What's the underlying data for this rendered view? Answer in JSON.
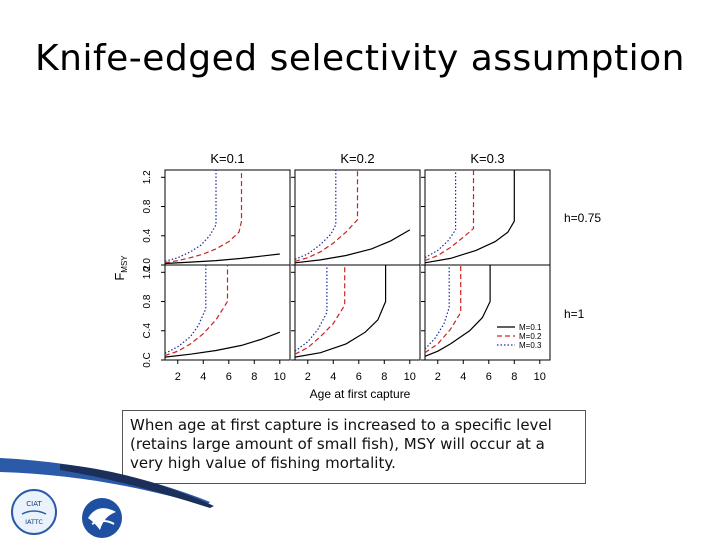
{
  "slide": {
    "title": "Knife-edged selectivity assumption",
    "caption": "When age at first capture is increased to a specific level (retains large amount of small fish), MSY will occur at a very high value of fishing mortality."
  },
  "logos": {
    "left": "CIAT IATTC",
    "right": "NOAA"
  },
  "chart_data": {
    "type": "line",
    "layout": "2x3 panel grid",
    "column_titles": [
      "K=0.1",
      "K=0.2",
      "K=0.3"
    ],
    "row_labels": [
      "h=0.75",
      "h=1"
    ],
    "ylabel": "F_MSY",
    "ylabel_main": "F",
    "ylabel_sub": "MSY",
    "xlabel": "Age at first capture",
    "x_ticks": [
      2,
      4,
      6,
      8,
      10
    ],
    "y_ticks": [
      0.0,
      0.4,
      0.8,
      1.2
    ],
    "y_tick_labels_top": [
      "0.0",
      "0.4",
      "0.8",
      "1.2"
    ],
    "y_tick_labels_bottom": [
      "0.C",
      "C.4",
      "0.8",
      "1.2"
    ],
    "xlim": [
      1,
      10.8
    ],
    "ylim": [
      0,
      1.3
    ],
    "legend": {
      "placement": "bottom-right panel, lower right",
      "entries": [
        "M=0.1",
        "M=0.2",
        "M=0.3"
      ]
    },
    "series_styles": {
      "M=0.1": {
        "color": "#000000",
        "dash": "solid"
      },
      "M=0.2": {
        "color": "#cc2222",
        "dash": "dashed"
      },
      "M=0.3": {
        "color": "#1a2a9a",
        "dash": "dotted"
      }
    },
    "panels": [
      {
        "row": 0,
        "col": 0,
        "series": [
          {
            "name": "M=0.1",
            "x": [
              1,
              3,
              5,
              7,
              8.5,
              10
            ],
            "y": [
              0.02,
              0.04,
              0.06,
              0.09,
              0.12,
              0.15
            ]
          },
          {
            "name": "M=0.2",
            "x": [
              1,
              2,
              3,
              4,
              5,
              6,
              6.8,
              7.0,
              7.0
            ],
            "y": [
              0.03,
              0.06,
              0.1,
              0.15,
              0.22,
              0.32,
              0.45,
              0.6,
              1.3
            ]
          },
          {
            "name": "M=0.3",
            "x": [
              1,
              2,
              3,
              3.8,
              4.5,
              5.0,
              5.0
            ],
            "y": [
              0.05,
              0.1,
              0.18,
              0.27,
              0.4,
              0.55,
              1.3
            ]
          }
        ]
      },
      {
        "row": 0,
        "col": 1,
        "series": [
          {
            "name": "M=0.1",
            "x": [
              1,
              3,
              5,
              7,
              8.5,
              10
            ],
            "y": [
              0.03,
              0.07,
              0.13,
              0.22,
              0.33,
              0.48
            ]
          },
          {
            "name": "M=0.2",
            "x": [
              1,
              2,
              3,
              4,
              5,
              5.9,
              5.9
            ],
            "y": [
              0.05,
              0.1,
              0.18,
              0.3,
              0.45,
              0.62,
              1.3
            ]
          },
          {
            "name": "M=0.3",
            "x": [
              1,
              2,
              3,
              3.8,
              4.2,
              4.2
            ],
            "y": [
              0.08,
              0.15,
              0.28,
              0.42,
              0.55,
              1.3
            ]
          }
        ]
      },
      {
        "row": 0,
        "col": 2,
        "series": [
          {
            "name": "M=0.1",
            "x": [
              1,
              3,
              5,
              6.5,
              7.5,
              8.0,
              8.0
            ],
            "y": [
              0.03,
              0.09,
              0.2,
              0.32,
              0.45,
              0.6,
              1.3
            ]
          },
          {
            "name": "M=0.2",
            "x": [
              1,
              2,
              3,
              4,
              4.8,
              4.8
            ],
            "y": [
              0.06,
              0.13,
              0.24,
              0.38,
              0.5,
              1.3
            ]
          },
          {
            "name": "M=0.3",
            "x": [
              1,
              2,
              2.8,
              3.4,
              3.4
            ],
            "y": [
              0.1,
              0.2,
              0.33,
              0.48,
              1.3
            ]
          }
        ]
      },
      {
        "row": 1,
        "col": 0,
        "series": [
          {
            "name": "M=0.1",
            "x": [
              1,
              3,
              5,
              7,
              8.5,
              10
            ],
            "y": [
              0.04,
              0.08,
              0.13,
              0.2,
              0.28,
              0.38
            ]
          },
          {
            "name": "M=0.2",
            "x": [
              1,
              2,
              3,
              4,
              5,
              5.9,
              5.9
            ],
            "y": [
              0.06,
              0.12,
              0.22,
              0.36,
              0.55,
              0.8,
              1.3
            ]
          },
          {
            "name": "M=0.3",
            "x": [
              1,
              2,
              3,
              3.6,
              4.2,
              4.2
            ],
            "y": [
              0.09,
              0.18,
              0.32,
              0.47,
              0.7,
              1.3
            ]
          }
        ]
      },
      {
        "row": 1,
        "col": 1,
        "series": [
          {
            "name": "M=0.1",
            "x": [
              1,
              3,
              5,
              6.5,
              7.5,
              8.1,
              8.1
            ],
            "y": [
              0.04,
              0.1,
              0.22,
              0.38,
              0.55,
              0.8,
              1.3
            ]
          },
          {
            "name": "M=0.2",
            "x": [
              1,
              2,
              3,
              4,
              4.9,
              4.9
            ],
            "y": [
              0.08,
              0.17,
              0.32,
              0.5,
              0.75,
              1.3
            ]
          },
          {
            "name": "M=0.3",
            "x": [
              1,
              2,
              2.8,
              3.5,
              3.5
            ],
            "y": [
              0.12,
              0.25,
              0.42,
              0.65,
              1.3
            ]
          }
        ]
      },
      {
        "row": 1,
        "col": 2,
        "series": [
          {
            "name": "M=0.1",
            "x": [
              1,
              2,
              3,
              4.5,
              5.5,
              6.1,
              6.1
            ],
            "y": [
              0.05,
              0.12,
              0.22,
              0.4,
              0.58,
              0.8,
              1.3
            ]
          },
          {
            "name": "M=0.2",
            "x": [
              1,
              2,
              3,
              3.8,
              3.8
            ],
            "y": [
              0.1,
              0.22,
              0.42,
              0.65,
              1.3
            ]
          },
          {
            "name": "M=0.3",
            "x": [
              1,
              1.8,
              2.5,
              2.9,
              2.9
            ],
            "y": [
              0.15,
              0.3,
              0.5,
              0.72,
              1.3
            ]
          }
        ]
      }
    ]
  }
}
